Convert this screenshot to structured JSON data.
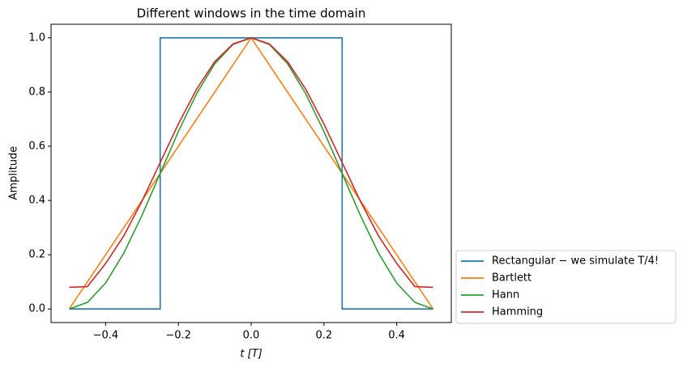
{
  "chart_data": {
    "type": "line",
    "title": "Different windows in the time domain",
    "xlabel": "t [T]",
    "ylabel": "Amplitude",
    "xlim": [
      -0.55,
      0.55
    ],
    "ylim": [
      -0.05,
      1.05
    ],
    "xticks": [
      {
        "value": -0.4,
        "label": "−0.4"
      },
      {
        "value": -0.2,
        "label": "−0.2"
      },
      {
        "value": 0,
        "label": "0.0"
      },
      0.2,
      0.4
    ],
    "yticks": [
      {
        "value": 0,
        "label": "0.0"
      },
      0.2,
      0.4,
      0.6,
      0.8,
      {
        "value": 1,
        "label": "1.0"
      }
    ],
    "grid": false,
    "legend": "outside-lower-right",
    "series": [
      {
        "name": "Rectangular − we simulate T/4!",
        "color": "#1f77b4",
        "x": [
          -0.5,
          -0.25,
          -0.25,
          0.25,
          0.25,
          0.5
        ],
        "values": [
          0,
          0,
          1,
          1,
          0,
          0
        ]
      },
      {
        "name": "Bartlett",
        "color": "#ff7f0e",
        "x": [
          -0.5,
          0,
          0.5
        ],
        "values": [
          0,
          1,
          0
        ]
      },
      {
        "name": "Hann",
        "color": "#2ca02c",
        "x": [
          -0.5,
          -0.45,
          -0.4,
          -0.35,
          -0.3,
          -0.25,
          -0.2,
          -0.15,
          -0.1,
          -0.05,
          0,
          0.05,
          0.1,
          0.15,
          0.2,
          0.25,
          0.3,
          0.35,
          0.4,
          0.45,
          0.5
        ],
        "values": [
          0,
          0.0245,
          0.0955,
          0.2061,
          0.3455,
          0.5,
          0.6545,
          0.7939,
          0.9045,
          0.9755,
          1,
          0.9755,
          0.9045,
          0.7939,
          0.6545,
          0.5,
          0.3455,
          0.2061,
          0.0955,
          0.0245,
          0
        ]
      },
      {
        "name": "Hamming",
        "color": "#d62728",
        "x": [
          -0.5,
          -0.45,
          -0.4,
          -0.35,
          -0.3,
          -0.25,
          -0.2,
          -0.15,
          -0.1,
          -0.05,
          0,
          0.05,
          0.1,
          0.15,
          0.2,
          0.25,
          0.3,
          0.35,
          0.4,
          0.45,
          0.5
        ],
        "values": [
          0.08,
          0.0825,
          0.1679,
          0.2696,
          0.3979,
          0.54,
          0.6821,
          0.8104,
          0.9121,
          0.9775,
          1,
          0.9775,
          0.9121,
          0.8104,
          0.6821,
          0.54,
          0.3979,
          0.2696,
          0.1679,
          0.0825,
          0.08
        ]
      }
    ]
  }
}
